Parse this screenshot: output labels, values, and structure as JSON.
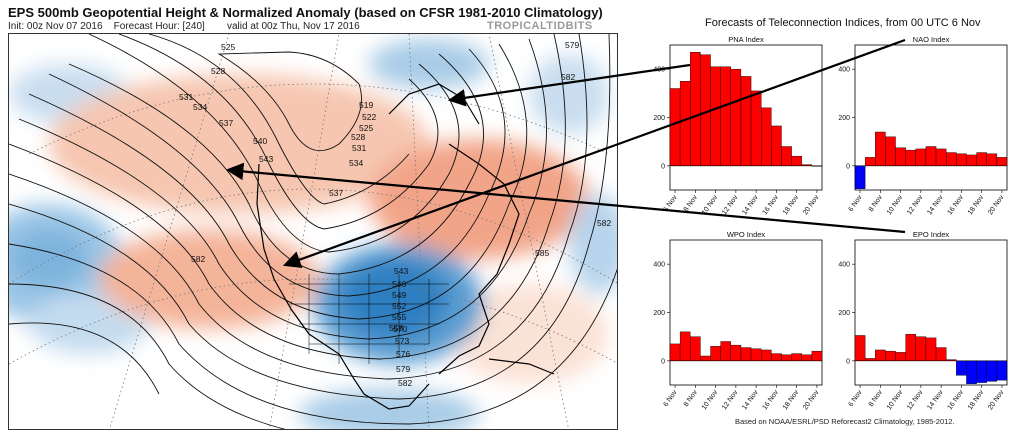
{
  "map": {
    "title": "EPS 500mb Geopotential Height & Normalized Anomaly (based on CFSR 1981-2010 Climatology)",
    "init": "Init: 00z Nov 07 2016",
    "forecast_hour": "Forecast Hour: [240]",
    "valid": "valid at 00z Thu, Nov 17 2016",
    "brand": "TROPICALTIDBITS",
    "contour_labels": [
      "525",
      "528",
      "531",
      "534",
      "537",
      "540",
      "543",
      "519",
      "522",
      "525",
      "528",
      "531",
      "534",
      "537",
      "579",
      "582",
      "582",
      "582",
      "585",
      "543",
      "546",
      "549",
      "552",
      "555",
      "558",
      "570",
      "573",
      "576",
      "579",
      "582"
    ],
    "colors": {
      "positive_anomaly": "#f2a488",
      "negative_anomaly": "#3a86c4",
      "contour": "#111111"
    }
  },
  "panel_group_title": "Forecasts of Teleconnection Indices, from 00 UTC 6 Nov",
  "footnote": "Based on NOAA/ESRL/PSD Reforecast2 Climatology, 1985-2012.",
  "chart_data": [
    {
      "type": "bar",
      "title": "PNA Index",
      "categories": [
        "6 Nov",
        "7 Nov",
        "8 Nov",
        "9 Nov",
        "10 Nov",
        "11 Nov",
        "12 Nov",
        "13 Nov",
        "14 Nov",
        "15 Nov",
        "16 Nov",
        "17 Nov",
        "18 Nov",
        "19 Nov",
        "20 Nov"
      ],
      "tick_labels": [
        "6 Nov",
        "8 Nov",
        "10 Nov",
        "12 Nov",
        "14 Nov",
        "16 Nov",
        "18 Nov",
        "20 Nov"
      ],
      "values": [
        320,
        350,
        470,
        460,
        410,
        410,
        400,
        370,
        310,
        240,
        165,
        80,
        40,
        5,
        0
      ],
      "ylim": [
        -100,
        500
      ],
      "yticks": [
        0,
        200,
        400
      ],
      "colors": {
        "positive": "#ff0000",
        "negative": "#0000ff"
      }
    },
    {
      "type": "bar",
      "title": "NAO Index",
      "categories": [
        "6 Nov",
        "7 Nov",
        "8 Nov",
        "9 Nov",
        "10 Nov",
        "11 Nov",
        "12 Nov",
        "13 Nov",
        "14 Nov",
        "15 Nov",
        "16 Nov",
        "17 Nov",
        "18 Nov",
        "19 Nov",
        "20 Nov"
      ],
      "tick_labels": [
        "6 Nov",
        "8 Nov",
        "10 Nov",
        "12 Nov",
        "14 Nov",
        "16 Nov",
        "18 Nov",
        "20 Nov"
      ],
      "values": [
        -95,
        35,
        140,
        120,
        75,
        65,
        70,
        80,
        70,
        55,
        50,
        45,
        55,
        50,
        35
      ],
      "ylim": [
        -100,
        500
      ],
      "yticks": [
        0,
        200,
        400
      ],
      "colors": {
        "positive": "#ff0000",
        "negative": "#0000ff"
      }
    },
    {
      "type": "bar",
      "title": "WPO Index",
      "categories": [
        "6 Nov",
        "7 Nov",
        "8 Nov",
        "9 Nov",
        "10 Nov",
        "11 Nov",
        "12 Nov",
        "13 Nov",
        "14 Nov",
        "15 Nov",
        "16 Nov",
        "17 Nov",
        "18 Nov",
        "19 Nov",
        "20 Nov"
      ],
      "tick_labels": [
        "6 Nov",
        "8 Nov",
        "10 Nov",
        "12 Nov",
        "14 Nov",
        "16 Nov",
        "18 Nov",
        "20 Nov"
      ],
      "values": [
        70,
        120,
        100,
        20,
        60,
        80,
        65,
        55,
        50,
        45,
        30,
        25,
        30,
        25,
        40
      ],
      "ylim": [
        -100,
        500
      ],
      "yticks": [
        0,
        200,
        400
      ],
      "colors": {
        "positive": "#ff0000",
        "negative": "#0000ff"
      }
    },
    {
      "type": "bar",
      "title": "EPO Index",
      "categories": [
        "6 Nov",
        "7 Nov",
        "8 Nov",
        "9 Nov",
        "10 Nov",
        "11 Nov",
        "12 Nov",
        "13 Nov",
        "14 Nov",
        "15 Nov",
        "16 Nov",
        "17 Nov",
        "18 Nov",
        "19 Nov",
        "20 Nov"
      ],
      "tick_labels": [
        "6 Nov",
        "8 Nov",
        "10 Nov",
        "12 Nov",
        "14 Nov",
        "16 Nov",
        "18 Nov",
        "20 Nov"
      ],
      "values": [
        105,
        10,
        45,
        40,
        35,
        110,
        100,
        95,
        55,
        5,
        -60,
        -95,
        -90,
        -85,
        -80
      ],
      "ylim": [
        -100,
        500
      ],
      "yticks": [
        0,
        200,
        400
      ],
      "colors": {
        "positive": "#ff0000",
        "negative": "#0000ff"
      }
    }
  ]
}
